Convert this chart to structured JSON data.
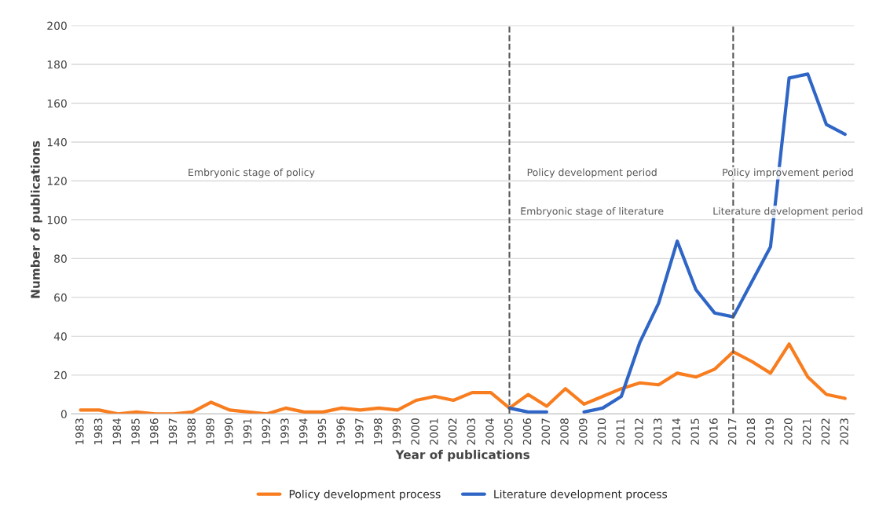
{
  "chart_data": {
    "type": "line",
    "xlabel": "Year of publications",
    "ylabel": "Number of publications",
    "categories": [
      "1983",
      "1983",
      "1984",
      "1985",
      "1986",
      "1987",
      "1988",
      "1989",
      "1990",
      "1991",
      "1992",
      "1993",
      "1994",
      "1995",
      "1996",
      "1997",
      "1998",
      "1999",
      "2000",
      "2001",
      "2002",
      "2003",
      "2004",
      "2005",
      "2006",
      "2007",
      "2008",
      "2009",
      "2010",
      "2011",
      "2012",
      "2013",
      "2014",
      "2015",
      "2016",
      "2017",
      "2018",
      "2019",
      "2020",
      "2021",
      "2022",
      "2023"
    ],
    "series": [
      {
        "name": "Policy development process",
        "color": "#f87d1f",
        "values": [
          2,
          2,
          0,
          1,
          0,
          0,
          1,
          6,
          2,
          1,
          0,
          3,
          1,
          1,
          3,
          2,
          3,
          2,
          7,
          9,
          7,
          11,
          11,
          3,
          10,
          4,
          13,
          5,
          9,
          13,
          16,
          15,
          21,
          19,
          23,
          32,
          27,
          21,
          36,
          19,
          10,
          8
        ]
      },
      {
        "name": "Literature development process",
        "color": "#2f66c6",
        "values": [
          null,
          null,
          null,
          null,
          null,
          null,
          null,
          null,
          null,
          null,
          null,
          null,
          null,
          null,
          null,
          null,
          null,
          null,
          null,
          null,
          null,
          null,
          null,
          3,
          1,
          1,
          null,
          1,
          3,
          9,
          37,
          57,
          89,
          64,
          52,
          50,
          68,
          86,
          173,
          175,
          149,
          144
        ]
      }
    ],
    "ylim": [
      0,
      200
    ],
    "yticks": [
      0,
      20,
      40,
      60,
      80,
      100,
      120,
      140,
      160,
      180,
      200
    ],
    "ref_lines": [
      {
        "axis": "x",
        "value": "2005",
        "color": "#555555",
        "line_style": "dashed"
      },
      {
        "axis": "x",
        "value": "2017",
        "color": "#555555",
        "line_style": "dashed"
      }
    ],
    "annotations": [
      "Embryonic stage of policy",
      "Policy development period",
      "Embryonic stage of literature",
      "Policy improvement period",
      "Literature development period"
    ],
    "grid": "y",
    "legend": "bottom",
    "marker": "none",
    "line_style": "solid"
  }
}
